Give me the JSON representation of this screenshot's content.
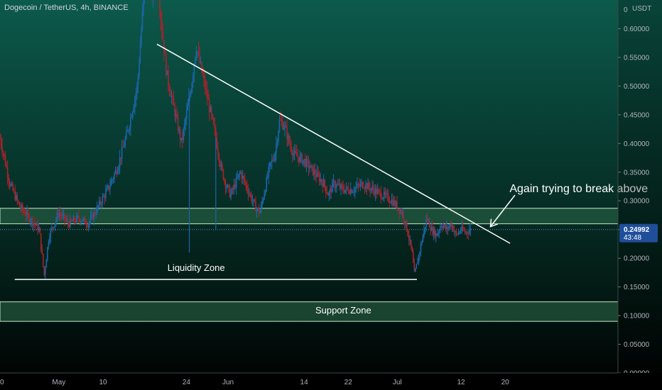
{
  "header": {
    "symbol_title": "Dogecoin / TetherUS, 4h, BINANCE",
    "currency": "USDT"
  },
  "colors": {
    "bg_top": "#0c5a4c",
    "bg_bottom": "#000000",
    "candle_up": "#1a66a8",
    "candle_down": "#a8232c",
    "zone_fill": "#2d6b4a",
    "zone_stroke": "#c8e6c9",
    "trendline": "#ffffff",
    "price_tag": "#1f4e9a"
  },
  "chart_data": {
    "type": "candlestick",
    "symbol": "Dogecoin / TetherUS",
    "timeframe": "4h",
    "exchange": "BINANCE",
    "x_ticks": [
      "0",
      "May",
      "10",
      "24",
      "Jun",
      "14",
      "22",
      "Jul",
      "12",
      "20"
    ],
    "y_ticks": [
      "0.00000",
      "0.05000",
      "0.10000",
      "0.15000",
      "0.20000",
      "0.25000",
      "0.30000",
      "0.35000",
      "0.40000",
      "0.45000",
      "0.50000",
      "0.55000",
      "0.60000"
    ],
    "y_top_tick_label": "0",
    "ylim": [
      0.0,
      0.65
    ],
    "current_price": "0.24992",
    "countdown": "43:48",
    "series_path": [
      [
        0,
        0.41
      ],
      [
        2,
        0.33
      ],
      [
        4,
        0.29
      ],
      [
        6,
        0.27
      ],
      [
        8,
        0.25
      ],
      [
        9,
        0.17
      ],
      [
        10,
        0.24
      ],
      [
        12,
        0.28
      ],
      [
        14,
        0.26
      ],
      [
        16,
        0.27
      ],
      [
        18,
        0.26
      ],
      [
        20,
        0.29
      ],
      [
        22,
        0.32
      ],
      [
        24,
        0.36
      ],
      [
        26,
        0.42
      ],
      [
        28,
        0.5
      ],
      [
        29,
        0.62
      ],
      [
        30,
        0.72
      ],
      [
        31,
        0.66
      ],
      [
        32,
        0.7
      ],
      [
        33,
        0.6
      ],
      [
        34,
        0.52
      ],
      [
        35,
        0.48
      ],
      [
        36,
        0.44
      ],
      [
        37,
        0.4
      ],
      [
        38,
        0.45
      ],
      [
        39,
        0.5
      ],
      [
        40,
        0.57
      ],
      [
        41,
        0.53
      ],
      [
        42,
        0.49
      ],
      [
        43,
        0.45
      ],
      [
        44,
        0.41
      ],
      [
        45,
        0.36
      ],
      [
        46,
        0.33
      ],
      [
        47,
        0.31
      ],
      [
        48,
        0.33
      ],
      [
        49,
        0.35
      ],
      [
        50,
        0.33
      ],
      [
        51,
        0.31
      ],
      [
        52,
        0.29
      ],
      [
        53,
        0.28
      ],
      [
        54,
        0.32
      ],
      [
        55,
        0.36
      ],
      [
        56,
        0.38
      ],
      [
        57,
        0.44
      ],
      [
        58,
        0.43
      ],
      [
        59,
        0.4
      ],
      [
        60,
        0.38
      ],
      [
        62,
        0.37
      ],
      [
        64,
        0.35
      ],
      [
        66,
        0.33
      ],
      [
        67,
        0.31
      ],
      [
        68,
        0.33
      ],
      [
        70,
        0.32
      ],
      [
        72,
        0.32
      ],
      [
        74,
        0.33
      ],
      [
        76,
        0.32
      ],
      [
        78,
        0.31
      ],
      [
        80,
        0.3
      ],
      [
        82,
        0.28
      ],
      [
        83,
        0.25
      ],
      [
        84,
        0.21
      ],
      [
        84.5,
        0.17
      ],
      [
        85,
        0.19
      ],
      [
        86,
        0.23
      ],
      [
        87,
        0.27
      ],
      [
        88,
        0.25
      ],
      [
        89,
        0.24
      ],
      [
        90,
        0.26
      ],
      [
        91,
        0.25
      ],
      [
        92,
        0.26
      ],
      [
        93,
        0.24
      ],
      [
        94,
        0.25
      ],
      [
        95,
        0.245
      ],
      [
        96,
        0.25
      ]
    ],
    "wicks": [
      {
        "x": 38.6,
        "low": 0.21
      },
      {
        "x": 44,
        "low": 0.25
      }
    ],
    "trendline": {
      "x": [
        32,
        104
      ],
      "y": [
        0.573,
        0.226
      ]
    },
    "liquidity_line": {
      "x": [
        3,
        85
      ],
      "y": 0.163
    },
    "resistance_zone": {
      "from": 0.26,
      "to": 0.287
    },
    "support_zone": {
      "from": 0.09,
      "to": 0.124
    },
    "arrow": {
      "from": [
        105,
        0.31
      ],
      "to": [
        100,
        0.255
      ]
    },
    "annotations": [
      {
        "text": "Again trying to break above",
        "x": 118,
        "y": 0.315,
        "size": 16
      },
      {
        "text": "Liquidity Zone",
        "x": 40,
        "y": 0.178,
        "size": 13
      },
      {
        "text": "Support Zone",
        "x": 70,
        "y": 0.104,
        "size": 13
      }
    ]
  }
}
